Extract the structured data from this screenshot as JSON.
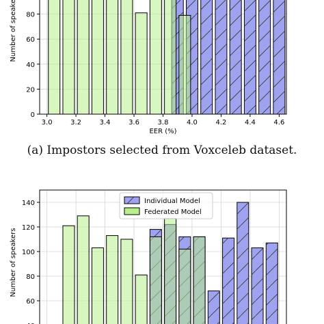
{
  "colors": {
    "individual": "#9fa2ee",
    "federated": "#b8ef8c",
    "overlap": "#79c29a",
    "edge": "#000000"
  },
  "caption_a": "(a) Impostors selected from Voxceleb dataset.",
  "chart_data": [
    {
      "type": "bar",
      "title": "",
      "xlabel": "EER (%)",
      "ylabel": "Number of speakers",
      "xlim": [
        2.95,
        4.65
      ],
      "ylim": [
        0,
        100
      ],
      "xticks": [
        "3.0",
        "3.2",
        "3.4",
        "3.6",
        "3.8",
        "4.0",
        "4.2",
        "4.4",
        "4.6"
      ],
      "yticks": [
        "0",
        "20",
        "40",
        "60",
        "80"
      ],
      "bar_width": 0.08,
      "grid": true,
      "series": [
        {
          "name": "Individual Model",
          "hatch": "/",
          "x": [
            3.9,
            4.0,
            4.1,
            4.2,
            4.3,
            4.4,
            4.5,
            4.6
          ],
          "values": [
            100,
            100,
            100,
            100,
            100,
            100,
            100,
            100
          ]
        },
        {
          "name": "Federated Model",
          "x": [
            3.05,
            3.15,
            3.25,
            3.35,
            3.45,
            3.55,
            3.65,
            3.75,
            3.85,
            3.95
          ],
          "values": [
            100,
            100,
            100,
            100,
            100,
            100,
            81,
            100,
            100,
            79
          ]
        }
      ]
    },
    {
      "type": "bar",
      "title": "",
      "xlabel": "",
      "ylabel": "Number of speakers",
      "xlim": [
        2.95,
        4.65
      ],
      "ylim": [
        40,
        150
      ],
      "xticks": [],
      "yticks": [
        "40",
        "60",
        "80",
        "100",
        "120",
        "140"
      ],
      "bar_width": 0.08,
      "grid": true,
      "legend": {
        "position": "top-center",
        "entries": [
          "Individual Model",
          "Federated Model"
        ]
      },
      "series": [
        {
          "name": "Individual Model",
          "hatch": "/",
          "x": [
            3.75,
            3.85,
            3.95,
            4.05,
            4.15,
            4.25,
            4.35,
            4.45,
            4.55
          ],
          "values": [
            118,
            122,
            112,
            112,
            68,
            111,
            140,
            103,
            107
          ]
        },
        {
          "name": "Federated Model",
          "x": [
            3.15,
            3.25,
            3.35,
            3.45,
            3.55,
            3.65,
            3.75,
            3.85,
            3.95,
            4.05
          ],
          "values": [
            121,
            129,
            103,
            113,
            110,
            81,
            112,
            127,
            102,
            112
          ]
        }
      ]
    }
  ]
}
